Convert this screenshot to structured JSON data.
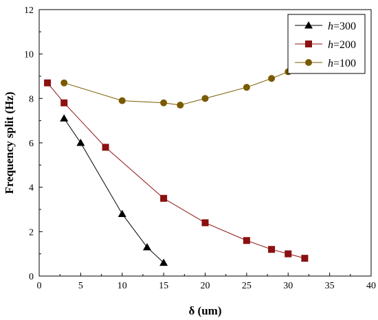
{
  "chart_data": {
    "type": "line",
    "xlabel": "δ (um)",
    "ylabel": "Frequency split (Hz)",
    "xlim": [
      0,
      40
    ],
    "ylim": [
      0,
      12
    ],
    "xticks": [
      "0",
      "5",
      "10",
      "15",
      "20",
      "25",
      "30",
      "35",
      "40"
    ],
    "yticks": [
      "0",
      "2",
      "4",
      "6",
      "8",
      "10",
      "12"
    ],
    "grid": false,
    "legend_position": "top-right",
    "series": [
      {
        "name": "h=300",
        "legend_italic": "h",
        "legend_rest": "=300",
        "marker": "triangle",
        "color": "#000000",
        "x": [
          3,
          5,
          10,
          13,
          15
        ],
        "y": [
          7.1,
          6.0,
          2.8,
          1.3,
          0.6
        ]
      },
      {
        "name": "h=200",
        "legend_italic": "h",
        "legend_rest": "=200",
        "marker": "square",
        "color": "#8B1010",
        "x": [
          1,
          3,
          8,
          15,
          20,
          25,
          28,
          30,
          32
        ],
        "y": [
          8.7,
          7.8,
          5.8,
          3.5,
          2.4,
          1.6,
          1.2,
          1.0,
          0.8
        ]
      },
      {
        "name": "h=100",
        "legend_italic": "h",
        "legend_rest": "=100",
        "marker": "circle",
        "color": "#7A5A00",
        "x": [
          3,
          10,
          15,
          17,
          20,
          25,
          28,
          30
        ],
        "y": [
          8.7,
          7.9,
          7.8,
          7.7,
          8.0,
          8.5,
          8.9,
          9.2
        ]
      }
    ]
  }
}
